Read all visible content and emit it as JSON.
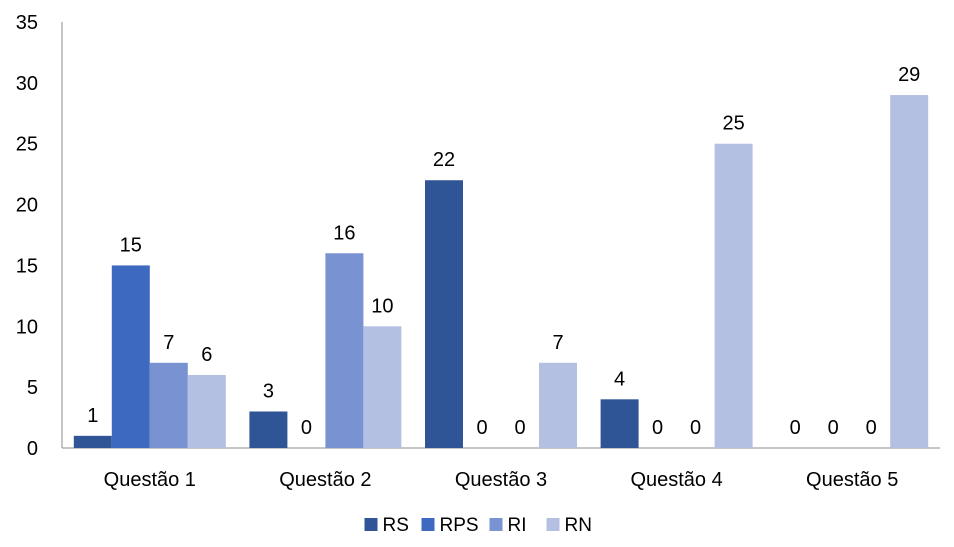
{
  "chart_data": {
    "type": "bar",
    "title": "",
    "xlabel": "",
    "ylabel": "",
    "categories": [
      "Questão 1",
      "Questão 2",
      "Questão 3",
      "Questão 4",
      "Questão 5"
    ],
    "series": [
      {
        "name": "RS",
        "color": "#2f5597",
        "values": [
          1,
          3,
          22,
          4,
          0
        ]
      },
      {
        "name": "RPS",
        "color": "#3d6ac0",
        "values": [
          15,
          0,
          0,
          0,
          0
        ]
      },
      {
        "name": "RI",
        "color": "#7993d2",
        "values": [
          7,
          16,
          0,
          0,
          0
        ]
      },
      {
        "name": "RN",
        "color": "#b4c0e1",
        "values": [
          6,
          10,
          7,
          25,
          29
        ]
      }
    ],
    "ylim": [
      0,
      35
    ],
    "yticks": [
      0,
      5,
      10,
      15,
      20,
      25,
      30,
      35
    ],
    "grid": false,
    "legend_position": "bottom"
  }
}
